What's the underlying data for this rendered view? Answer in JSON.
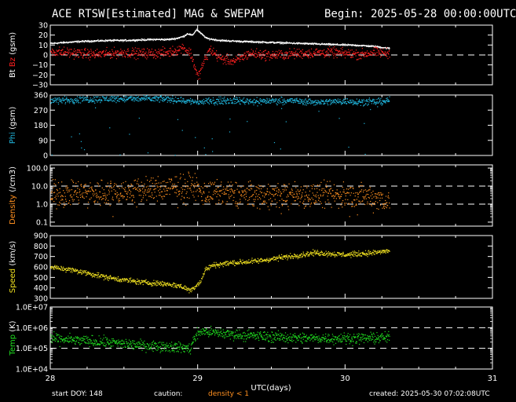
{
  "header": {
    "title": "ACE RTSW[Estimated] MAG & SWEPAM",
    "begin": "Begin: 2025-05-28 00:00:00UTC"
  },
  "footer": {
    "start_doy": "start DOY: 148",
    "caution_label": "caution:",
    "caution_value": "density < 1",
    "created": "created: 2025-05-30 07:02:08UTC"
  },
  "colors": {
    "background": "#000000",
    "axes": "#ffffff",
    "bt": "#ffffff",
    "bz": "#ff2020",
    "phi": "#20b8e0",
    "density": "#ff9020",
    "speed": "#f0e020",
    "temp": "#20e020",
    "dashed": "#ffffff"
  },
  "chart_data": {
    "type": "scatter",
    "x_axis": {
      "label": "UTC(days)",
      "range": [
        28,
        31
      ],
      "ticks": [
        "28",
        "29",
        "30",
        "31"
      ]
    },
    "panels": [
      {
        "id": "mag",
        "ylabel_parts": [
          {
            "text": "Bt",
            "color": "#ffffff"
          },
          {
            "text": " Bz",
            "color": "#ff2020"
          },
          {
            "text": " (gsm)",
            "color": "#ffffff"
          }
        ],
        "scale": "linear",
        "ylim": [
          -30,
          30
        ],
        "ticks": [
          "30",
          "20",
          "10",
          "0",
          "−10",
          "−20",
          "−30"
        ],
        "tick_values": [
          30,
          20,
          10,
          0,
          -10,
          -20,
          -30
        ],
        "dashed": [
          0
        ],
        "series": [
          {
            "key": "bt",
            "color": "#ffffff",
            "spread": 0.6,
            "points": [
              [
                28.0,
                12
              ],
              [
                28.1,
                13
              ],
              [
                28.2,
                14
              ],
              [
                28.3,
                14.5
              ],
              [
                28.4,
                15
              ],
              [
                28.5,
                15
              ],
              [
                28.6,
                15.5
              ],
              [
                28.7,
                16
              ],
              [
                28.8,
                16
              ],
              [
                28.85,
                17
              ],
              [
                28.9,
                19
              ],
              [
                28.93,
                22
              ],
              [
                28.96,
                20
              ],
              [
                28.99,
                26
              ],
              [
                29.02,
                22
              ],
              [
                29.06,
                17
              ],
              [
                29.15,
                15
              ],
              [
                29.3,
                14
              ],
              [
                29.5,
                13
              ],
              [
                29.7,
                12
              ],
              [
                29.9,
                11
              ],
              [
                30.1,
                10
              ],
              [
                30.2,
                9
              ],
              [
                30.3,
                7
              ]
            ]
          },
          {
            "key": "bz",
            "color": "#ff2020",
            "spread": 3.5,
            "points": [
              [
                28.0,
                4
              ],
              [
                28.1,
                3
              ],
              [
                28.2,
                2
              ],
              [
                28.3,
                1
              ],
              [
                28.4,
                2
              ],
              [
                28.5,
                3
              ],
              [
                28.6,
                2
              ],
              [
                28.7,
                2
              ],
              [
                28.8,
                3
              ],
              [
                28.85,
                5
              ],
              [
                28.9,
                8
              ],
              [
                28.95,
                2
              ],
              [
                29.0,
                -22
              ],
              [
                29.03,
                -10
              ],
              [
                29.08,
                6
              ],
              [
                29.15,
                -3
              ],
              [
                29.25,
                -6
              ],
              [
                29.35,
                2
              ],
              [
                29.5,
                0
              ],
              [
                29.7,
                2
              ],
              [
                29.9,
                3
              ],
              [
                30.1,
                1
              ],
              [
                30.2,
                3
              ],
              [
                30.3,
                2
              ]
            ]
          }
        ]
      },
      {
        "id": "phi",
        "ylabel_parts": [
          {
            "text": "Phi",
            "color": "#20b8e0"
          },
          {
            "text": " (gsm)",
            "color": "#ffffff"
          }
        ],
        "scale": "linear",
        "ylim": [
          0,
          360
        ],
        "ticks": [
          "360",
          "270",
          "180",
          "90",
          "0"
        ],
        "tick_values": [
          360,
          270,
          180,
          90,
          0
        ],
        "dashed": [],
        "series": [
          {
            "key": "phi",
            "color": "#20b8e0",
            "spread": 14,
            "points": [
              [
                28.0,
                330
              ],
              [
                28.2,
                335
              ],
              [
                28.4,
                340
              ],
              [
                28.6,
                340
              ],
              [
                28.8,
                338
              ],
              [
                29.0,
                320
              ],
              [
                29.2,
                330
              ],
              [
                29.4,
                325
              ],
              [
                29.6,
                330
              ],
              [
                29.8,
                320
              ],
              [
                30.0,
                325
              ],
              [
                30.2,
                320
              ],
              [
                30.3,
                330
              ]
            ]
          }
        ]
      },
      {
        "id": "density",
        "ylabel_parts": [
          {
            "text": "Density",
            "color": "#ff9020"
          },
          {
            "text": " (/cm3)",
            "color": "#ffffff"
          }
        ],
        "scale": "log",
        "ylim": [
          0.06,
          150
        ],
        "ticks": [
          "100.0",
          "10.0",
          "1.0",
          "0.1"
        ],
        "tick_values": [
          100,
          10,
          1,
          0.1
        ],
        "dashed": [
          10,
          1
        ],
        "series": [
          {
            "key": "density",
            "color": "#ff9020",
            "spread": 0.5,
            "points": [
              [
                28.0,
                3.5
              ],
              [
                28.1,
                4
              ],
              [
                28.2,
                4.5
              ],
              [
                28.3,
                4.5
              ],
              [
                28.4,
                5
              ],
              [
                28.5,
                5.5
              ],
              [
                28.6,
                6
              ],
              [
                28.7,
                7
              ],
              [
                28.8,
                8
              ],
              [
                28.9,
                10
              ],
              [
                28.95,
                13
              ],
              [
                29.0,
                6
              ],
              [
                29.05,
                4
              ],
              [
                29.2,
                4
              ],
              [
                29.4,
                3.5
              ],
              [
                29.6,
                3.5
              ],
              [
                29.8,
                3.5
              ],
              [
                30.0,
                3
              ],
              [
                30.1,
                3
              ],
              [
                30.2,
                2.5
              ],
              [
                30.3,
                1.5
              ]
            ]
          }
        ]
      },
      {
        "id": "speed",
        "ylabel_parts": [
          {
            "text": "Speed",
            "color": "#f0e020"
          },
          {
            "text": " (km/s)",
            "color": "#ffffff"
          }
        ],
        "scale": "linear",
        "ylim": [
          300,
          900
        ],
        "ticks": [
          "900",
          "800",
          "700",
          "600",
          "500",
          "400",
          "300"
        ],
        "tick_values": [
          900,
          800,
          700,
          600,
          500,
          400,
          300
        ],
        "dashed": [],
        "series": [
          {
            "key": "speed",
            "color": "#f0e020",
            "spread": 18,
            "points": [
              [
                28.0,
                600
              ],
              [
                28.1,
                585
              ],
              [
                28.2,
                560
              ],
              [
                28.3,
                530
              ],
              [
                28.4,
                500
              ],
              [
                28.5,
                480
              ],
              [
                28.6,
                460
              ],
              [
                28.7,
                450
              ],
              [
                28.8,
                440
              ],
              [
                28.88,
                420
              ],
              [
                28.95,
                380
              ],
              [
                29.02,
                470
              ],
              [
                29.05,
                580
              ],
              [
                29.1,
                620
              ],
              [
                29.2,
                640
              ],
              [
                29.4,
                660
              ],
              [
                29.6,
                700
              ],
              [
                29.8,
                740
              ],
              [
                30.0,
                720
              ],
              [
                30.2,
                740
              ],
              [
                30.3,
                760
              ]
            ]
          }
        ]
      },
      {
        "id": "temp",
        "ylabel_parts": [
          {
            "text": "Temp",
            "color": "#20e020"
          },
          {
            "text": " (K)",
            "color": "#ffffff"
          }
        ],
        "scale": "log",
        "ylim": [
          10000,
          10000000
        ],
        "ticks": [
          "1.0E+07",
          "1.0E+06",
          "1.0E+05",
          "1.0E+04"
        ],
        "tick_values": [
          10000000,
          1000000,
          100000,
          10000
        ],
        "dashed": [
          1000000,
          100000
        ],
        "series": [
          {
            "key": "temp",
            "color": "#20e020",
            "spread": 0.18,
            "points": [
              [
                28.0,
                300000
              ],
              [
                28.2,
                250000
              ],
              [
                28.4,
                200000
              ],
              [
                28.6,
                150000
              ],
              [
                28.8,
                130000
              ],
              [
                28.95,
                100000
              ],
              [
                29.02,
                700000
              ],
              [
                29.1,
                600000
              ],
              [
                29.3,
                450000
              ],
              [
                29.5,
                380000
              ],
              [
                29.7,
                330000
              ],
              [
                29.9,
                320000
              ],
              [
                30.1,
                320000
              ],
              [
                30.3,
                350000
              ]
            ]
          }
        ]
      }
    ]
  }
}
